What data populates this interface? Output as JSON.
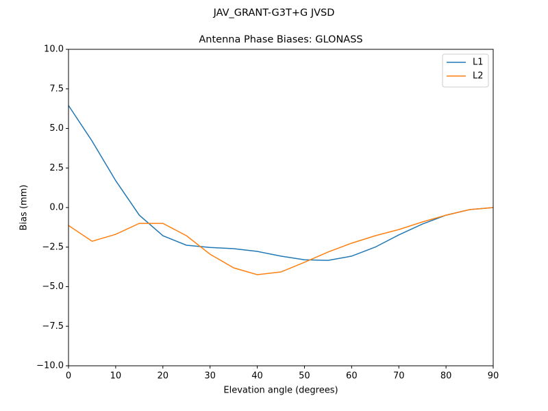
{
  "chart_data": {
    "type": "line",
    "suptitle": "JAV_GRANT-G3T+G JVSD",
    "title": "Antenna Phase Biases: GLONASS",
    "xlabel": "Elevation angle (degrees)",
    "ylabel": "Bias (mm)",
    "x": [
      0,
      5,
      10,
      15,
      20,
      25,
      30,
      35,
      40,
      45,
      50,
      55,
      60,
      65,
      70,
      75,
      80,
      85,
      90
    ],
    "series": [
      {
        "name": "L1",
        "color": "#1f77b4",
        "values": [
          6.45,
          4.2,
          1.7,
          -0.48,
          -1.78,
          -2.38,
          -2.52,
          -2.6,
          -2.77,
          -3.07,
          -3.3,
          -3.34,
          -3.07,
          -2.5,
          -1.73,
          -1.04,
          -0.48,
          -0.13,
          0
        ]
      },
      {
        "name": "L2",
        "color": "#ff7f0e",
        "values": [
          -1.13,
          -2.13,
          -1.69,
          -1.0,
          -1.0,
          -1.78,
          -2.95,
          -3.81,
          -4.24,
          -4.07,
          -3.46,
          -2.81,
          -2.25,
          -1.78,
          -1.39,
          -0.91,
          -0.48,
          -0.13,
          0
        ]
      }
    ],
    "xlim": [
      0,
      90
    ],
    "xticks": [
      0,
      10,
      20,
      30,
      40,
      50,
      60,
      70,
      80,
      90
    ],
    "ylim": [
      -10,
      10
    ],
    "yticks": [
      {
        "value": 10,
        "label": "10.0"
      },
      7.5,
      {
        "value": 5,
        "label": "5.0"
      },
      2.5,
      {
        "value": 0,
        "label": "0.0"
      },
      {
        "value": -2.5,
        "label": "−2.5"
      },
      {
        "value": -5,
        "label": "−5.0"
      },
      {
        "value": -7.5,
        "label": "−7.5"
      },
      {
        "value": -10,
        "label": "−10.0"
      }
    ],
    "grid": false,
    "legend": "upper right"
  }
}
